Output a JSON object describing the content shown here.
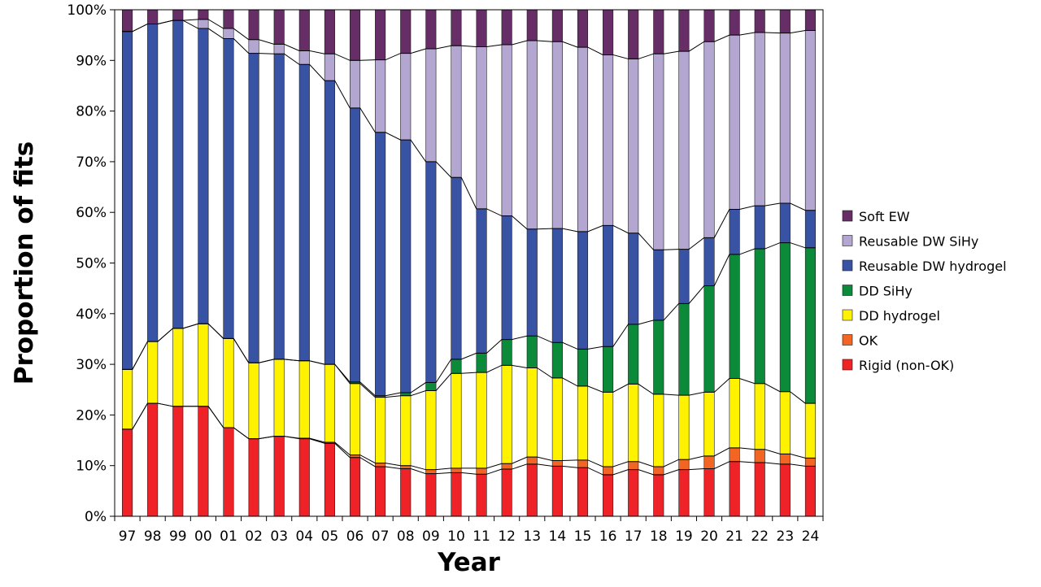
{
  "chart_data": {
    "type": "bar",
    "stacked": true,
    "normalized": true,
    "title": "",
    "xlabel": "Year",
    "ylabel": "Proportion of fits",
    "ylim": [
      0,
      100
    ],
    "y_ticks": [
      "0%",
      "10%",
      "20%",
      "30%",
      "40%",
      "50%",
      "60%",
      "70%",
      "80%",
      "90%",
      "100%"
    ],
    "grid": false,
    "legend_position": "right",
    "categories": [
      "97",
      "98",
      "99",
      "00",
      "01",
      "02",
      "03",
      "04",
      "05",
      "06",
      "07",
      "08",
      "09",
      "10",
      "11",
      "12",
      "13",
      "14",
      "15",
      "16",
      "17",
      "18",
      "19",
      "20",
      "21",
      "22",
      "23",
      "24"
    ],
    "series": [
      {
        "name": "Rigid (non-OK)",
        "color": "#ee2227",
        "values": [
          17.2,
          22.3,
          21.7,
          21.7,
          17.5,
          15.3,
          15.8,
          15.3,
          14.4,
          11.6,
          9.8,
          9.4,
          8.4,
          8.6,
          8.3,
          9.3,
          10.3,
          9.9,
          9.6,
          8.2,
          9.2,
          8.2,
          9.2,
          9.4,
          10.8,
          10.6,
          10.3,
          9.9
        ]
      },
      {
        "name": "OK",
        "color": "#f26522",
        "values": [
          0.0,
          0.0,
          0.0,
          0.0,
          0.0,
          0.0,
          0.0,
          0.1,
          0.2,
          0.5,
          0.7,
          0.6,
          0.8,
          0.9,
          1.2,
          1.1,
          1.4,
          1.1,
          1.5,
          1.6,
          1.6,
          1.6,
          2.0,
          2.5,
          2.7,
          2.6,
          2.0,
          1.6
        ]
      },
      {
        "name": "DD hydrogel",
        "color": "#fff200",
        "values": [
          11.8,
          12.2,
          15.4,
          16.3,
          17.6,
          15.0,
          15.2,
          15.3,
          15.4,
          14.1,
          13.0,
          13.8,
          15.6,
          18.7,
          18.9,
          19.4,
          17.6,
          16.3,
          14.6,
          14.7,
          15.3,
          14.3,
          12.7,
          12.6,
          13.7,
          13.0,
          12.3,
          10.8
        ]
      },
      {
        "name": "DD SiHy",
        "color": "#0b8a3a",
        "values": [
          0.0,
          0.0,
          0.0,
          0.0,
          0.0,
          0.0,
          0.0,
          0.0,
          0.0,
          0.3,
          0.3,
          0.6,
          1.6,
          2.8,
          3.8,
          5.1,
          6.3,
          7.0,
          7.3,
          9.0,
          11.8,
          14.6,
          18.1,
          21.0,
          24.5,
          26.6,
          29.4,
          30.7
        ]
      },
      {
        "name": "Reusable DW hydrogel",
        "color": "#3953a4",
        "values": [
          66.7,
          62.7,
          60.8,
          58.3,
          59.2,
          61.1,
          60.3,
          58.5,
          56.0,
          54.1,
          52.0,
          49.9,
          43.6,
          35.9,
          28.5,
          24.4,
          21.1,
          22.5,
          23.2,
          23.9,
          18.0,
          13.9,
          10.7,
          9.5,
          8.9,
          8.5,
          7.8,
          7.4
        ]
      },
      {
        "name": "Reusable DW SiHy",
        "color": "#b3a7d1",
        "values": [
          0.0,
          0.0,
          0.0,
          1.8,
          2.0,
          2.7,
          1.9,
          2.7,
          5.3,
          9.4,
          14.3,
          17.1,
          22.3,
          26.0,
          32.0,
          33.8,
          37.2,
          36.9,
          36.4,
          33.7,
          34.4,
          38.7,
          39.1,
          38.7,
          34.4,
          34.2,
          33.6,
          35.5
        ]
      },
      {
        "name": "Soft EW",
        "color": "#662d66",
        "values": [
          4.3,
          2.8,
          2.1,
          1.9,
          3.7,
          5.9,
          6.8,
          8.1,
          8.7,
          10.0,
          9.9,
          8.6,
          7.7,
          7.1,
          7.3,
          6.9,
          6.1,
          6.3,
          7.4,
          8.9,
          9.7,
          8.7,
          8.2,
          6.3,
          5.0,
          4.5,
          4.6,
          4.1
        ]
      }
    ]
  }
}
